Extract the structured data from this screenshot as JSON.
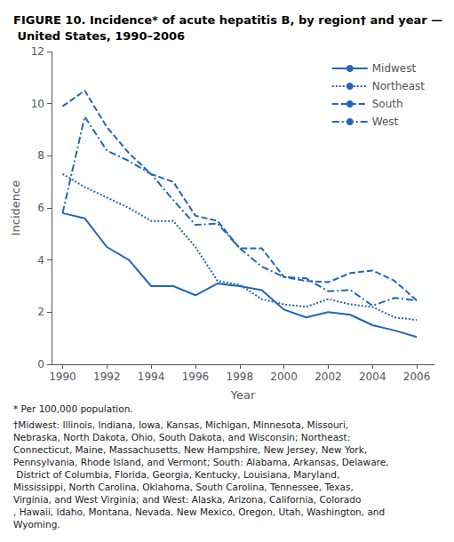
{
  "chart_data": {
    "type": "line",
    "title": "FIGURE 10. Incidence* of acute hepatitis B, by region† and year — United States, 1990–2006",
    "x_label": "Year",
    "y_label": "Incidence",
    "x": [
      1990,
      1991,
      1992,
      1993,
      1994,
      1995,
      1996,
      1997,
      1998,
      1999,
      2000,
      2001,
      2002,
      2003,
      2004,
      2005,
      2006
    ],
    "series": [
      {
        "name": "Midwest",
        "color": "#2266BB",
        "line_style": "solid",
        "values": [
          5.8,
          5.6,
          4.5,
          4.0,
          3.0,
          3.0,
          2.65,
          3.1,
          3.0,
          2.85,
          2.1,
          1.8,
          2.0,
          1.9,
          1.5,
          1.3,
          1.05
        ]
      },
      {
        "name": "Northeast",
        "color": "#2266BB",
        "line_style": "dotted",
        "values": [
          7.3,
          6.8,
          6.4,
          6.0,
          5.5,
          5.5,
          4.5,
          3.2,
          3.05,
          2.5,
          2.3,
          2.2,
          2.5,
          2.3,
          2.2,
          1.8,
          1.7
        ]
      },
      {
        "name": "South",
        "color": "#2266BB",
        "line_style": "dashed",
        "values": [
          9.9,
          10.5,
          9.1,
          8.1,
          7.3,
          7.0,
          5.7,
          5.5,
          4.45,
          4.45,
          3.35,
          3.2,
          3.15,
          3.5,
          3.6,
          3.2,
          2.45
        ]
      },
      {
        "name": "West",
        "color": "#2266BB",
        "line_style": "dashdot",
        "values": [
          5.8,
          9.5,
          8.2,
          7.8,
          7.3,
          6.3,
          5.35,
          5.4,
          4.45,
          3.75,
          3.35,
          3.3,
          2.8,
          2.85,
          2.25,
          2.55,
          2.45
        ]
      }
    ],
    "xlim": [
      1989.5,
      2006.8
    ],
    "xticks": [
      1990,
      1992,
      1994,
      1996,
      1998,
      2000,
      2002,
      2004,
      2006
    ],
    "ylim": [
      0,
      12
    ],
    "yticks": [
      0,
      2,
      4,
      6,
      8,
      10,
      12
    ],
    "grid": false,
    "legend": "upper right",
    "annotations": [
      "* Per 100,000 population.",
      "†Midwest: Illinois, Indiana, Iowa, Kansas, Michigan, Minnesota, Missouri, Nebraska, North Dakota, Ohio, South Dakota, and Wisconsin; Northeast: Connecticut, Maine, Massachusetts, New Hampshire, New Jersey, New York, Pennsylvania, Rhode Island, and Vermont; South: Alabama, Arkansas, Delaware, District of Columbia, Florida, Georgia, Kentucky, Louisiana, Maryland, Mississippi, North Carolina, Oklahoma, South Carolina, Tennessee, Texas, Virginia, and West Virginia; and West: Alaska, Arizona, California, Colorado, Hawaii, Idaho, Montana, Nevada, New Mexico, Oregon, Utah, Washington, and Wyoming."
    ]
  }
}
